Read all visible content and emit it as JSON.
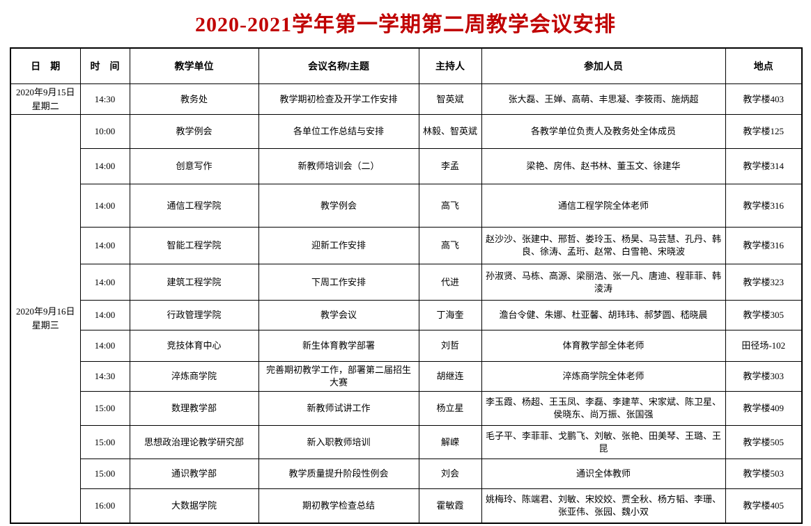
{
  "title": "2020-2021学年第一学期第二周教学会议安排",
  "table": {
    "headers": [
      "日　期",
      "时　间",
      "教学单位",
      "会议名称/主题",
      "主持人",
      "参加人员",
      "地点"
    ],
    "date_groups": [
      {
        "date": "2020年9月15日",
        "weekday": "星期二",
        "rows": [
          {
            "time": "14:30",
            "unit": "教务处",
            "topic": "教学期初检查及开学工作安排",
            "host": "智英斌",
            "participants": "张大磊、王婵、高萌、丰思凝、李筱雨、施炳超",
            "location": "教学楼403"
          }
        ]
      },
      {
        "date": "2020年9月16日",
        "weekday": "星期三",
        "rows": [
          {
            "time": "10:00",
            "unit": "教学例会",
            "topic": "各单位工作总结与安排",
            "host": "林毅、智英斌",
            "participants": "各教学单位负责人及教务处全体成员",
            "location": "教学楼125"
          },
          {
            "time": "14:00",
            "unit": "创意写作",
            "topic": "新教师培训会（二）",
            "host": "李孟",
            "participants": "梁艳、房伟、赵书林、董玉文、徐建华",
            "location": "教学楼314"
          },
          {
            "time": "14:00",
            "unit": "通信工程学院",
            "topic": "教学例会",
            "host": "高飞",
            "participants": "通信工程学院全体老师",
            "location": "教学楼316"
          },
          {
            "time": "14:00",
            "unit": "智能工程学院",
            "topic": "迎新工作安排",
            "host": "高飞",
            "participants": "赵沙沙、张建中、邢哲、娄玲玉、杨昊、马芸慧、孔丹、韩良、徐涛、孟珩、赵常、白雪艳、宋晓波",
            "location": "教学楼316"
          },
          {
            "time": "14:00",
            "unit": "建筑工程学院",
            "topic": "下周工作安排",
            "host": "代进",
            "participants": "孙淑贤、马栋、高源、梁丽浩、张一凡、唐迪、程菲菲、韩淩涛",
            "location": "教学楼323"
          },
          {
            "time": "14:00",
            "unit": "行政管理学院",
            "topic": "教学会议",
            "host": "丁海奎",
            "participants": "澹台令健、朱娜、杜亚馨、胡玮玮、郝梦圆、嵇晓晨",
            "location": "教学楼305"
          },
          {
            "time": "14:00",
            "unit": "竞技体育中心",
            "topic": "新生体育教学部署",
            "host": "刘哲",
            "participants": "体育教学部全体老师",
            "location": "田径场-102"
          },
          {
            "time": "14:30",
            "unit": "淬炼商学院",
            "topic": "完善期初教学工作，部署第二届招生大赛",
            "host": "胡继连",
            "participants": "淬炼商学院全体老师",
            "location": "教学楼303"
          },
          {
            "time": "15:00",
            "unit": "数理教学部",
            "topic": "新教师试讲工作",
            "host": "杨立星",
            "participants": "李玉霞、杨超、王玉凤、李磊、李建苹、宋家斌、陈卫星、侯晓东、尚万振、张国强",
            "location": "教学楼409"
          },
          {
            "time": "15:00",
            "unit": "思想政治理论教学研究部",
            "topic": "新入职教师培训",
            "host": "解嵘",
            "participants": "毛子平、李菲菲、戈鹏飞、刘敏、张艳、田美琴、王璐、王昆",
            "location": "教学楼505"
          },
          {
            "time": "15:00",
            "unit": "通识教学部",
            "topic": "教学质量提升阶段性例会",
            "host": "刘会",
            "participants": "通识全体教师",
            "location": "教学楼503"
          },
          {
            "time": "16:00",
            "unit": "大数据学院",
            "topic": "期初教学检查总结",
            "host": "霍敏霞",
            "participants": "姚梅玲、陈端君、刘敏、宋姣姣、贾全秋、杨方韬、李珊、张亚伟、张园、魏小双",
            "location": "教学楼405"
          }
        ]
      }
    ]
  }
}
